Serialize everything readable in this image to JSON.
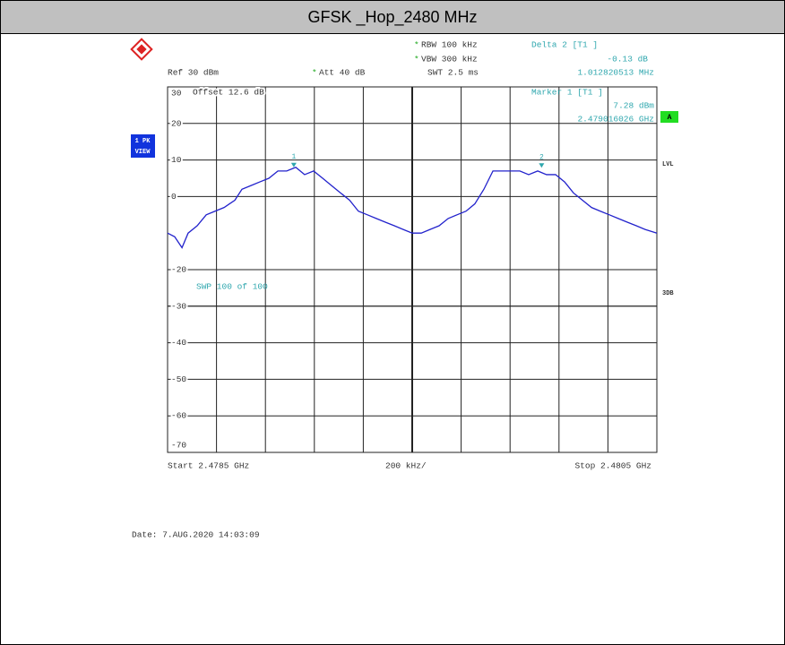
{
  "header": {
    "title": "GFSK _Hop_2480 MHz",
    "rbw": "RBW 100 kHz",
    "vbw": "VBW 300 kHz",
    "swt": "SWT 2.5 ms",
    "ref": "Ref 30 dBm",
    "att": "Att 40 dB",
    "delta_title": "Delta 2 [T1 ]",
    "delta_level": "-0.13 dB",
    "delta_freq": "1.012820513 MHz",
    "offset": "Offset 12.6 dB",
    "marker_title": "Marker 1 [T1 ]",
    "marker_level": "7.28 dBm",
    "marker_freq": "2.479016026 GHz",
    "badge_a": "A",
    "trace_label": [
      "1 PK",
      "VIEW"
    ],
    "lvl": "LVL",
    "db3": "3DB",
    "sweep": "SWP 100 of 100",
    "start": "Start 2.4785 GHz",
    "span": "200 kHz/",
    "stop": "Stop 2.4805 GHz",
    "date": "Date: 7.AUG.2020 14:03:09"
  },
  "chart_data": {
    "type": "line",
    "xlim": [
      2.4785,
      2.4805
    ],
    "ylim": [
      -70,
      30
    ],
    "yticks": [
      30,
      20,
      10,
      0,
      -20,
      -30,
      -40,
      -50,
      -60,
      -70
    ],
    "grid": true,
    "x": [
      2.4785,
      2.478529,
      2.478559,
      2.478584,
      2.478621,
      2.478658,
      2.478694,
      2.478731,
      2.478775,
      2.478804,
      2.478841,
      2.478877,
      2.478914,
      2.478951,
      2.478987,
      2.479024,
      2.47906,
      2.479097,
      2.479134,
      2.47917,
      2.479207,
      2.479244,
      2.47928,
      2.479317,
      2.479353,
      2.47939,
      2.479427,
      2.479463,
      2.4795,
      2.479537,
      2.479573,
      2.47961,
      2.479647,
      2.479683,
      2.47972,
      2.479756,
      2.479793,
      2.47983,
      2.479866,
      2.479903,
      2.47994,
      2.479976,
      2.480013,
      2.480049,
      2.480086,
      2.480123,
      2.480159,
      2.480196,
      2.480233,
      2.480269,
      2.480306,
      2.480342,
      2.480379,
      2.480416,
      2.480452,
      2.4805
    ],
    "series": [
      {
        "color": "#2222cc",
        "values": [
          -10,
          -11,
          -14,
          -10,
          -8,
          -5,
          -4,
          -3,
          -1,
          2,
          3,
          4,
          5,
          7,
          7,
          8,
          6,
          7,
          5,
          3,
          1,
          -1,
          -4,
          -5,
          -6,
          -7,
          -8,
          -9,
          -10,
          -10,
          -9,
          -8,
          -6,
          -5,
          -4,
          -2,
          2,
          7,
          7,
          7,
          7,
          6,
          7,
          6,
          6,
          4,
          1,
          -1,
          -3,
          -4,
          -5,
          -6,
          -7,
          -8,
          -9,
          -10
        ]
      }
    ],
    "markers": [
      {
        "label": "1",
        "x": 2.479016026,
        "y": 7.28
      },
      {
        "label": "2",
        "x": 2.480028846,
        "y": 7.15
      }
    ],
    "marker_color": "#2fa7ae"
  }
}
